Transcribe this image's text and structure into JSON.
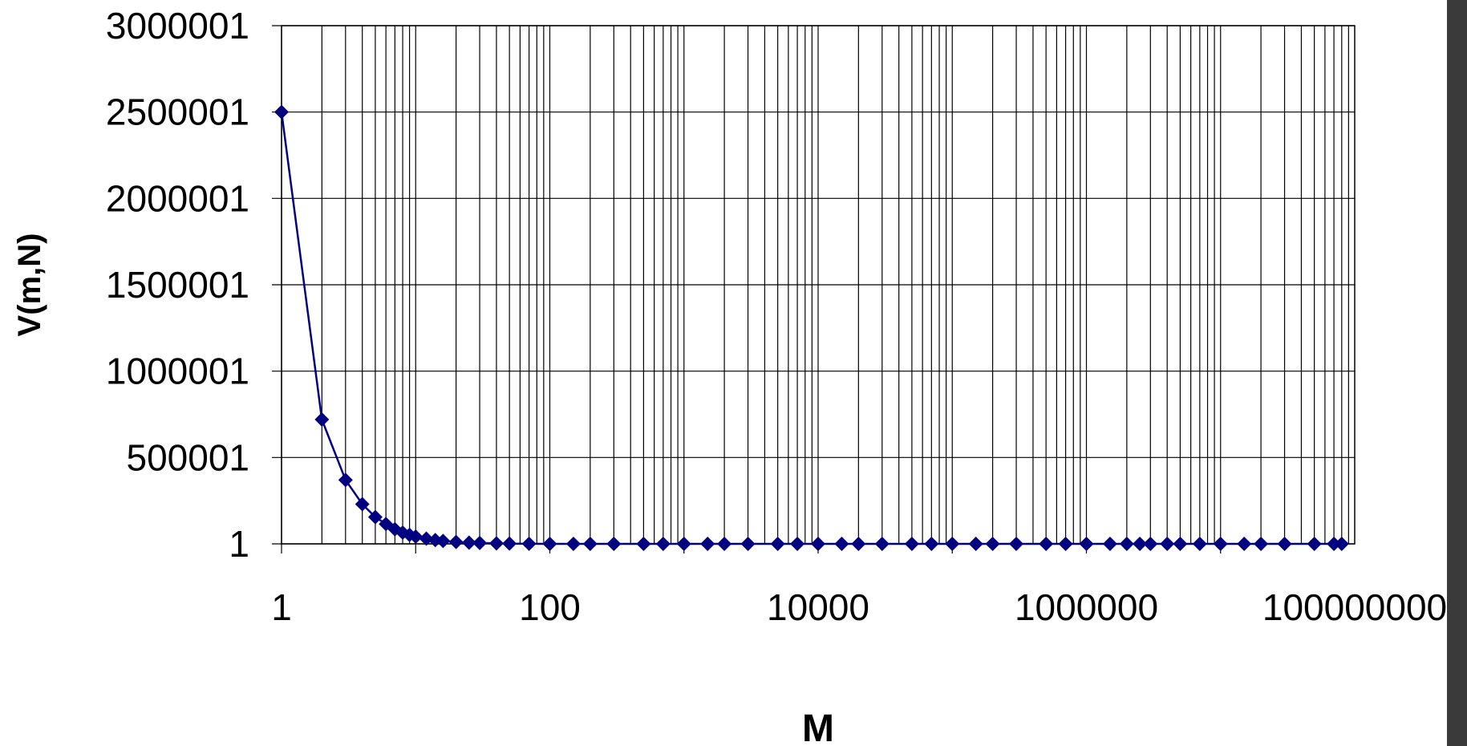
{
  "chart_data": {
    "type": "line",
    "xlabel": "M",
    "ylabel": "V(m,N)",
    "x_scale": "log",
    "xlim": [
      1,
      100000000
    ],
    "ylim": [
      1,
      3000001
    ],
    "x_tick_labels": [
      "1",
      "100",
      "10000",
      "1000000",
      "100000000"
    ],
    "y_tick_labels": [
      "1",
      "500001",
      "1000001",
      "1500001",
      "2000001",
      "2500001",
      "3000001"
    ],
    "grid": true,
    "legend": "none",
    "series_color": "#000080",
    "marker": "diamond",
    "series": [
      {
        "x": [
          1,
          2,
          3,
          4,
          5,
          6,
          7,
          8,
          9,
          10,
          12,
          14,
          16,
          20,
          25,
          30,
          40,
          50,
          70,
          100,
          150,
          200,
          300,
          500,
          700,
          1000,
          1500,
          2000,
          3000,
          5000,
          7000,
          10000,
          15000,
          20000,
          30000,
          50000,
          70000,
          100000,
          150000,
          200000,
          300000,
          500000,
          700000,
          1000000,
          1500000,
          2000000,
          2500000,
          3000000,
          4000000,
          5000000,
          7000000,
          10000000,
          15000000,
          20000000,
          30000000,
          50000000,
          70000000,
          80000000
        ],
        "y": [
          2500001,
          720000,
          370000,
          230000,
          155000,
          115000,
          85000,
          65000,
          52000,
          42000,
          30000,
          22000,
          17000,
          11000,
          7000,
          5000,
          3000,
          1500,
          500,
          100,
          50,
          20,
          10,
          5,
          3,
          2,
          1,
          1,
          1,
          1,
          1,
          1,
          1,
          1,
          1,
          1,
          1,
          1,
          1,
          1,
          1,
          1,
          1,
          1,
          1,
          1,
          1,
          1,
          1,
          1,
          1,
          1,
          1,
          1,
          1,
          1,
          1,
          1
        ]
      }
    ]
  }
}
